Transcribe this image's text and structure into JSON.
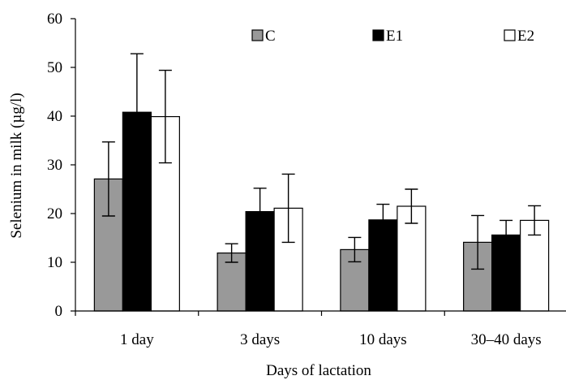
{
  "chart_data": {
    "type": "bar",
    "categories": [
      "1 day",
      "3 days",
      "10 days",
      "30–40 days"
    ],
    "series": [
      {
        "name": "C",
        "color": "#999999",
        "values": [
          27.1,
          11.9,
          12.6,
          14.1
        ],
        "errors": [
          7.6,
          1.9,
          2.5,
          5.5
        ]
      },
      {
        "name": "E1",
        "color": "#000000",
        "values": [
          40.8,
          20.4,
          18.7,
          15.6
        ],
        "errors": [
          12.0,
          4.8,
          3.2,
          3.0
        ]
      },
      {
        "name": "E2",
        "color": "#ffffff",
        "values": [
          39.9,
          21.1,
          21.5,
          18.6
        ],
        "errors": [
          9.5,
          7.0,
          3.5,
          3.0
        ]
      }
    ],
    "xlabel": "Days of lactation",
    "ylabel": "Selenium in milk (µg/l)",
    "ylim": [
      0,
      60
    ],
    "yticks": [
      0,
      10,
      20,
      30,
      40,
      50,
      60
    ],
    "grid": false,
    "legend_position": "top-right"
  }
}
